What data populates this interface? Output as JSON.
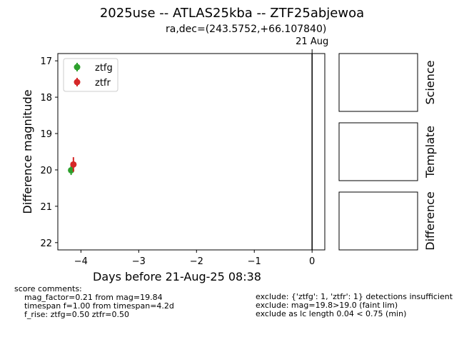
{
  "title": "2025use -- ATLAS25kba -- ZTF25abjewoa",
  "subtitle": "ra,dec=(243.5752,+66.107840)",
  "chart_data": {
    "type": "scatter",
    "xlabel": "Days before 21-Aug-25 08:38",
    "ylabel": "Difference magnitude",
    "xlim": [
      -4.4,
      0.22
    ],
    "ylim": [
      22.2,
      16.8
    ],
    "y_inverted": true,
    "xticks": [
      -4,
      -3,
      -2,
      -1,
      0
    ],
    "xtick_labels": [
      "−4",
      "−3",
      "−2",
      "−1",
      "0"
    ],
    "yticks": [
      17,
      18,
      19,
      20,
      21,
      22
    ],
    "ytick_labels": [
      "17",
      "18",
      "19",
      "20",
      "21",
      "22"
    ],
    "grid": false,
    "legend_position": "top-left",
    "series": [
      {
        "name": "ztfg",
        "color": "#2ca02c",
        "x": [
          -4.17
        ],
        "y": [
          20.01
        ],
        "yerr": [
          0.13
        ]
      },
      {
        "name": "ztfr",
        "color": "#d62728",
        "x": [
          -4.13
        ],
        "y": [
          19.85
        ],
        "yerr": [
          0.2
        ]
      }
    ],
    "vlines": [
      {
        "x": 0,
        "label": "21 Aug",
        "color": "#000000"
      }
    ]
  },
  "panels": [
    {
      "label": "Science"
    },
    {
      "label": "Template"
    },
    {
      "label": "Difference"
    }
  ],
  "comments": {
    "left": [
      "score comments:",
      "    mag_factor=0.21 from mag=19.84",
      "    timespan f=1.00 from timespan=4.2d",
      "    f_rise: ztfg=0.50 ztfr=0.50"
    ],
    "right": [
      "exclude: {'ztfg': 1, 'ztfr': 1} detections insufficient",
      "exclude: mag=19.8>19.0 (faint lim)",
      "exclude as lc length 0.04 < 0.75 (min)"
    ]
  }
}
